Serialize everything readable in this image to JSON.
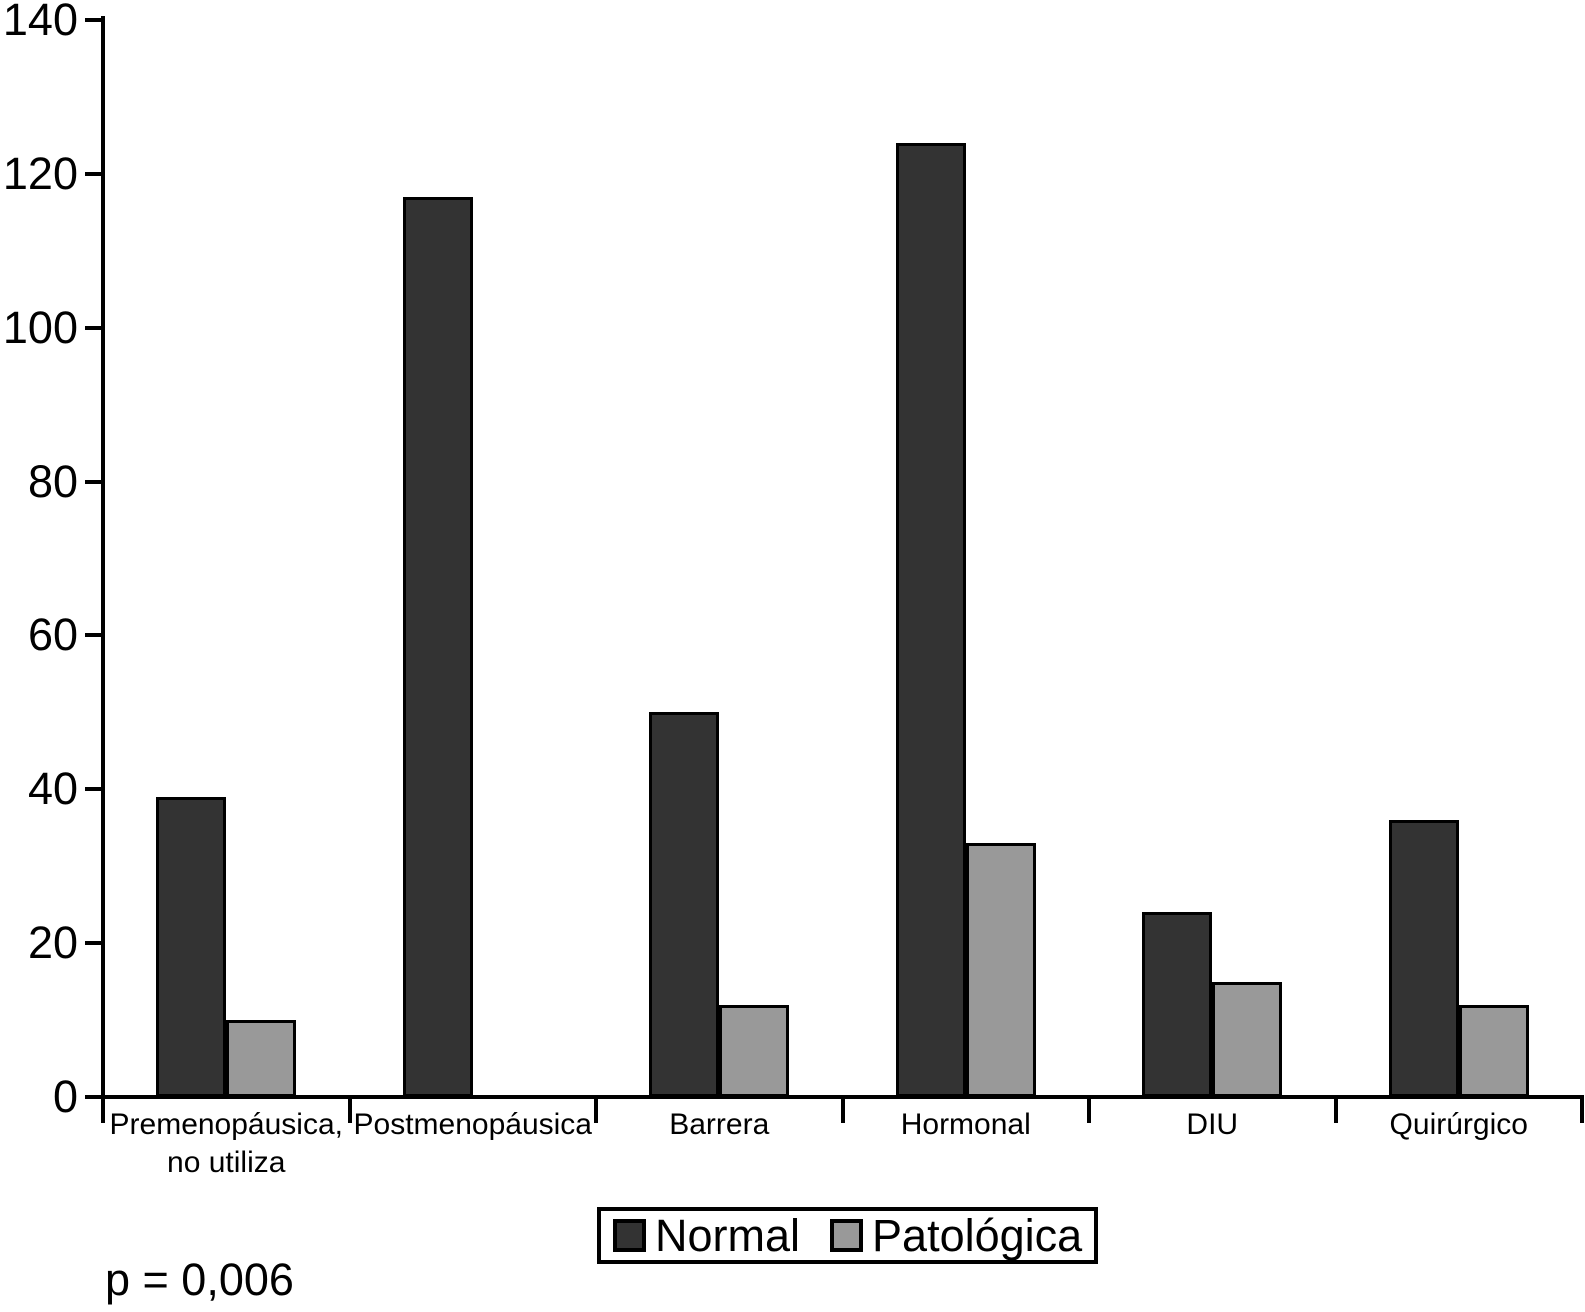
{
  "figure": {
    "p_value_label": "p = 0,006"
  },
  "chart_data": {
    "type": "bar",
    "title": "",
    "xlabel": "",
    "ylabel": "",
    "categories": [
      "Premenopáusica, no utiliza",
      "Postmenopáusica",
      "Barrera",
      "Hormonal",
      "DIU",
      "Quirúrgico"
    ],
    "category_display_lines": [
      [
        "Premenopáusica,",
        "no utiliza"
      ],
      [
        "Postmenopáusica"
      ],
      [
        "Barrera"
      ],
      [
        "Hormonal"
      ],
      [
        "DIU"
      ],
      [
        "Quirúrgico"
      ]
    ],
    "series": [
      {
        "name": "Normal",
        "color": "#333333",
        "values": [
          39,
          117,
          50,
          124,
          24,
          36
        ]
      },
      {
        "name": "Patológica",
        "color": "#999999",
        "values": [
          10,
          0,
          12,
          33,
          15,
          12
        ]
      }
    ],
    "ylim": [
      0,
      140
    ],
    "yticks": [
      0,
      20,
      40,
      60,
      80,
      100,
      120,
      140
    ],
    "grid": false,
    "legend_position": "bottom-center",
    "annotation": "p = 0,006",
    "bar_border_color": "#000000",
    "axis_color": "#000000"
  }
}
